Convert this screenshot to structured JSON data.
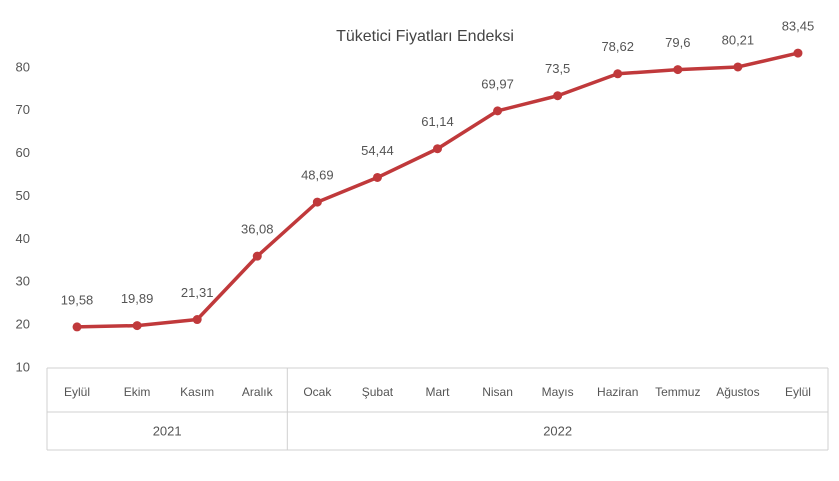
{
  "chart_data": {
    "type": "line",
    "title": "Tüketici Fiyatları Endeksi",
    "category_groups": [
      {
        "name": "2021",
        "categories": [
          "Eylül",
          "Ekim",
          "Kasım",
          "Aralık"
        ]
      },
      {
        "name": "2022",
        "categories": [
          "Ocak",
          "Şubat",
          "Mart",
          "Nisan",
          "Mayıs",
          "Haziran",
          "Temmuz",
          "Ağustos",
          "Eylül"
        ]
      }
    ],
    "values": [
      19.58,
      19.89,
      21.31,
      36.08,
      48.69,
      54.44,
      61.14,
      69.97,
      73.5,
      78.62,
      79.6,
      80.21,
      83.45
    ],
    "value_labels": [
      "19,58",
      "19,89",
      "21,31",
      "36,08",
      "48,69",
      "54,44",
      "61,14",
      "69,97",
      "73,5",
      "78,62",
      "79,6",
      "80,21",
      "83,45"
    ],
    "color": "#c0393b",
    "ylim": [
      10,
      90
    ],
    "yticks": [
      10,
      20,
      30,
      40,
      50,
      60,
      70,
      80
    ],
    "grid": false
  }
}
